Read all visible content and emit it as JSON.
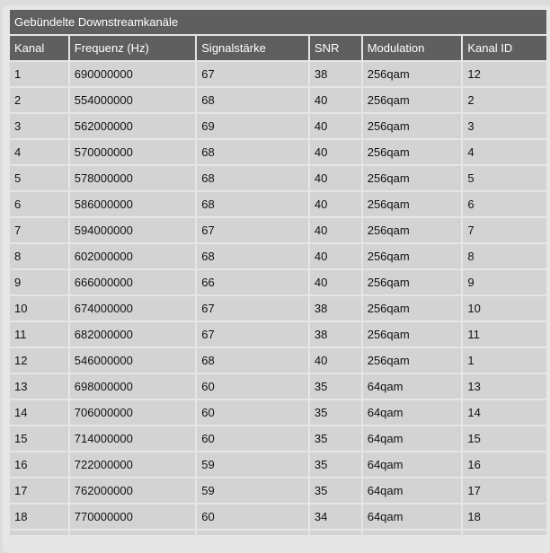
{
  "title": "Gebündelte Downstreamkanäle",
  "columns": [
    "Kanal",
    "Frequenz (Hz)",
    "Signalstärke",
    "SNR",
    "Modulation",
    "Kanal ID"
  ],
  "rows": [
    [
      "1",
      "690000000",
      "67",
      "38",
      "256qam",
      "12"
    ],
    [
      "2",
      "554000000",
      "68",
      "40",
      "256qam",
      "2"
    ],
    [
      "3",
      "562000000",
      "69",
      "40",
      "256qam",
      "3"
    ],
    [
      "4",
      "570000000",
      "68",
      "40",
      "256qam",
      "4"
    ],
    [
      "5",
      "578000000",
      "68",
      "40",
      "256qam",
      "5"
    ],
    [
      "6",
      "586000000",
      "68",
      "40",
      "256qam",
      "6"
    ],
    [
      "7",
      "594000000",
      "67",
      "40",
      "256qam",
      "7"
    ],
    [
      "8",
      "602000000",
      "68",
      "40",
      "256qam",
      "8"
    ],
    [
      "9",
      "666000000",
      "66",
      "40",
      "256qam",
      "9"
    ],
    [
      "10",
      "674000000",
      "67",
      "38",
      "256qam",
      "10"
    ],
    [
      "11",
      "682000000",
      "67",
      "38",
      "256qam",
      "11"
    ],
    [
      "12",
      "546000000",
      "68",
      "40",
      "256qam",
      "1"
    ],
    [
      "13",
      "698000000",
      "60",
      "35",
      "64qam",
      "13"
    ],
    [
      "14",
      "706000000",
      "60",
      "35",
      "64qam",
      "14"
    ],
    [
      "15",
      "714000000",
      "60",
      "35",
      "64qam",
      "15"
    ],
    [
      "16",
      "722000000",
      "59",
      "35",
      "64qam",
      "16"
    ],
    [
      "17",
      "762000000",
      "59",
      "35",
      "64qam",
      "17"
    ],
    [
      "18",
      "770000000",
      "60",
      "34",
      "64qam",
      "18"
    ],
    [
      "",
      "",
      "",
      "",
      "",
      ""
    ]
  ]
}
